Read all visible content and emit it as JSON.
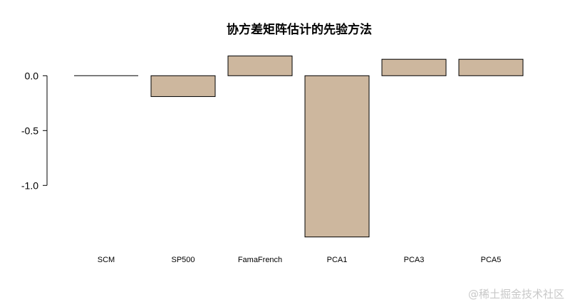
{
  "chart_data": {
    "type": "bar",
    "title": "协方差矩阵估计的先验方法",
    "xlabel": "",
    "ylabel": "",
    "categories": [
      "SCM",
      "SP500",
      "FamaFrench",
      "PCA1",
      "PCA3",
      "PCA5"
    ],
    "values": [
      0.0,
      -0.19,
      0.18,
      -1.47,
      0.15,
      0.15
    ],
    "yticks": [
      0.0,
      -0.5,
      -1.0
    ],
    "ytick_labels": [
      "0.0",
      "-0.5",
      "-1.0"
    ],
    "ylim": [
      -1.47,
      0.18
    ],
    "grid": false,
    "bar_color": "#cdb79e"
  },
  "watermark": "@稀土掘金技术社区"
}
